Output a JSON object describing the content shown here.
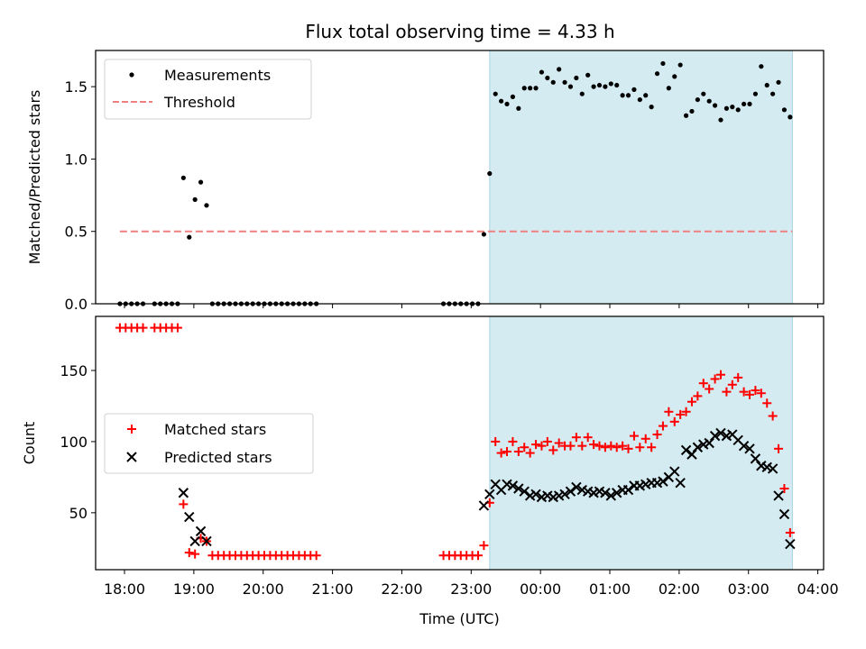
{
  "chart_data": [
    {
      "type": "scatter",
      "title": "Flux total observing time = 4.33 h",
      "xlabel": "",
      "ylabel": "Matched/Predicted stars",
      "xlim": [
        "17:35",
        "04:05"
      ],
      "ylim": [
        0,
        1.75
      ],
      "yticks": [
        0.0,
        0.5,
        1.0,
        1.5
      ],
      "ytick_labels": [
        "0.0",
        "0.5",
        "1.0",
        "1.5"
      ],
      "legend_position": "upper-left",
      "highlight_span": {
        "start": "23:16",
        "end": "03:38",
        "color": "#d4ebf1"
      },
      "series": [
        {
          "name": "Measurements",
          "marker": "dot",
          "color": "#000000",
          "x": [
            "17:56",
            "18:01",
            "18:06",
            "18:11",
            "18:16",
            "18:26",
            "18:31",
            "18:36",
            "18:41",
            "18:46",
            "18:51",
            "18:56",
            "19:01",
            "19:06",
            "19:11",
            "19:16",
            "19:21",
            "19:26",
            "19:31",
            "19:36",
            "19:41",
            "19:46",
            "19:51",
            "19:56",
            "20:01",
            "20:06",
            "20:11",
            "20:16",
            "20:21",
            "20:26",
            "20:31",
            "20:36",
            "20:41",
            "20:46",
            "22:36",
            "22:41",
            "22:46",
            "22:51",
            "22:56",
            "23:01",
            "23:06",
            "23:11",
            "23:16",
            "23:21",
            "23:26",
            "23:31",
            "23:36",
            "23:41",
            "23:46",
            "23:51",
            "23:56",
            "00:01",
            "00:06",
            "00:11",
            "00:16",
            "00:21",
            "00:26",
            "00:31",
            "00:36",
            "00:41",
            "00:46",
            "00:51",
            "00:56",
            "01:01",
            "01:06",
            "01:11",
            "01:16",
            "01:21",
            "01:26",
            "01:31",
            "01:36",
            "01:41",
            "01:46",
            "01:51",
            "01:56",
            "02:01",
            "02:06",
            "02:11",
            "02:16",
            "02:21",
            "02:26",
            "02:31",
            "02:36",
            "02:41",
            "02:46",
            "02:51",
            "02:56",
            "03:01",
            "03:06",
            "03:11",
            "03:16",
            "03:21",
            "03:26",
            "03:31",
            "03:36"
          ],
          "y": [
            0,
            0,
            0,
            0,
            0,
            0,
            0,
            0,
            0,
            0,
            0.87,
            0.46,
            0.72,
            0.84,
            0.68,
            0,
            0,
            0,
            0,
            0,
            0,
            0,
            0,
            0,
            0,
            0,
            0,
            0,
            0,
            0,
            0,
            0,
            0,
            0,
            0,
            0,
            0,
            0,
            0,
            0,
            0,
            0.48,
            0.9,
            1.45,
            1.4,
            1.38,
            1.43,
            1.35,
            1.49,
            1.49,
            1.49,
            1.6,
            1.56,
            1.53,
            1.62,
            1.53,
            1.5,
            1.56,
            1.45,
            1.58,
            1.5,
            1.51,
            1.5,
            1.52,
            1.51,
            1.44,
            1.44,
            1.48,
            1.41,
            1.44,
            1.36,
            1.59,
            1.66,
            1.49,
            1.57,
            1.65,
            1.3,
            1.33,
            1.41,
            1.45,
            1.4,
            1.37,
            1.27,
            1.35,
            1.36,
            1.34,
            1.38,
            1.38,
            1.45,
            1.64,
            1.51,
            1.45,
            1.53,
            1.34,
            1.29
          ]
        },
        {
          "name": "Threshold",
          "marker": "dashed-line",
          "color": "#f08080",
          "x": [
            "17:56",
            "03:38"
          ],
          "y": [
            0.5,
            0.5
          ]
        }
      ]
    },
    {
      "type": "scatter",
      "title": "",
      "xlabel": "Time (UTC)",
      "ylabel": "Count",
      "xlim": [
        "17:35",
        "04:05"
      ],
      "ylim": [
        10,
        188
      ],
      "yticks": [
        50,
        100,
        150
      ],
      "ytick_labels": [
        "50",
        "100",
        "150"
      ],
      "xticks": [
        "18:00",
        "19:00",
        "20:00",
        "21:00",
        "22:00",
        "23:00",
        "00:00",
        "01:00",
        "02:00",
        "03:00",
        "04:00"
      ],
      "legend_position": "center-left",
      "highlight_span": {
        "start": "23:16",
        "end": "03:38",
        "color": "#d4ebf1"
      },
      "series": [
        {
          "name": "Matched stars",
          "marker": "plus",
          "color": "#ff0000",
          "x": [
            "17:56",
            "18:01",
            "18:06",
            "18:11",
            "18:16",
            "18:26",
            "18:31",
            "18:36",
            "18:41",
            "18:46",
            "18:51",
            "18:56",
            "19:01",
            "19:06",
            "19:11",
            "19:16",
            "19:21",
            "19:26",
            "19:31",
            "19:36",
            "19:41",
            "19:46",
            "19:51",
            "19:56",
            "20:01",
            "20:06",
            "20:11",
            "20:16",
            "20:21",
            "20:26",
            "20:31",
            "20:36",
            "20:41",
            "20:46",
            "22:36",
            "22:41",
            "22:46",
            "22:51",
            "22:56",
            "23:01",
            "23:06",
            "23:11",
            "23:16",
            "23:21",
            "23:26",
            "23:31",
            "23:36",
            "23:41",
            "23:46",
            "23:51",
            "23:56",
            "00:01",
            "00:06",
            "00:11",
            "00:16",
            "00:21",
            "00:26",
            "00:31",
            "00:36",
            "00:41",
            "00:46",
            "00:51",
            "00:56",
            "01:01",
            "01:06",
            "01:11",
            "01:16",
            "01:21",
            "01:26",
            "01:31",
            "01:36",
            "01:41",
            "01:46",
            "01:51",
            "01:56",
            "02:01",
            "02:06",
            "02:11",
            "02:16",
            "02:21",
            "02:26",
            "02:31",
            "02:36",
            "02:41",
            "02:46",
            "02:51",
            "02:56",
            "03:01",
            "03:06",
            "03:11",
            "03:16",
            "03:21",
            "03:26",
            "03:31",
            "03:36"
          ],
          "y": [
            180,
            180,
            180,
            180,
            180,
            180,
            180,
            180,
            180,
            180,
            56,
            22,
            21,
            32,
            30,
            20,
            20,
            20,
            20,
            20,
            20,
            20,
            20,
            20,
            20,
            20,
            20,
            20,
            20,
            20,
            20,
            20,
            20,
            20,
            20,
            20,
            20,
            20,
            20,
            20,
            20,
            27,
            57,
            100,
            92,
            93,
            100,
            93,
            96,
            92,
            98,
            97,
            100,
            94,
            99,
            97,
            97,
            103,
            97,
            103,
            98,
            97,
            96,
            97,
            96,
            97,
            95,
            104,
            96,
            102,
            96,
            105,
            111,
            121,
            114,
            119,
            121,
            128,
            132,
            141,
            137,
            144,
            147,
            135,
            140,
            145,
            135,
            133,
            136,
            134,
            127,
            118,
            95,
            67,
            36
          ]
        },
        {
          "name": "Predicted stars",
          "marker": "x",
          "color": "#000000",
          "x": [
            "18:51",
            "18:56",
            "19:01",
            "19:06",
            "19:11",
            "23:11",
            "23:16",
            "23:21",
            "23:26",
            "23:31",
            "23:36",
            "23:41",
            "23:46",
            "23:51",
            "23:56",
            "00:01",
            "00:06",
            "00:11",
            "00:16",
            "00:21",
            "00:26",
            "00:31",
            "00:36",
            "00:41",
            "00:46",
            "00:51",
            "00:56",
            "01:01",
            "01:06",
            "01:11",
            "01:16",
            "01:21",
            "01:26",
            "01:31",
            "01:36",
            "01:41",
            "01:46",
            "01:51",
            "01:56",
            "02:01",
            "02:06",
            "02:11",
            "02:16",
            "02:21",
            "02:26",
            "02:31",
            "02:36",
            "02:41",
            "02:46",
            "02:51",
            "02:56",
            "03:01",
            "03:06",
            "03:11",
            "03:16",
            "03:21",
            "03:26",
            "03:31",
            "03:36"
          ],
          "y": [
            64,
            47,
            30,
            37,
            30,
            55,
            63,
            70,
            66,
            70,
            69,
            67,
            65,
            62,
            63,
            61,
            62,
            61,
            62,
            63,
            65,
            68,
            66,
            65,
            64,
            65,
            64,
            62,
            64,
            66,
            66,
            69,
            69,
            70,
            71,
            71,
            72,
            75,
            79,
            71,
            94,
            91,
            96,
            98,
            99,
            104,
            106,
            104,
            105,
            101,
            97,
            95,
            88,
            83,
            82,
            81,
            62,
            49,
            28
          ]
        }
      ]
    }
  ]
}
